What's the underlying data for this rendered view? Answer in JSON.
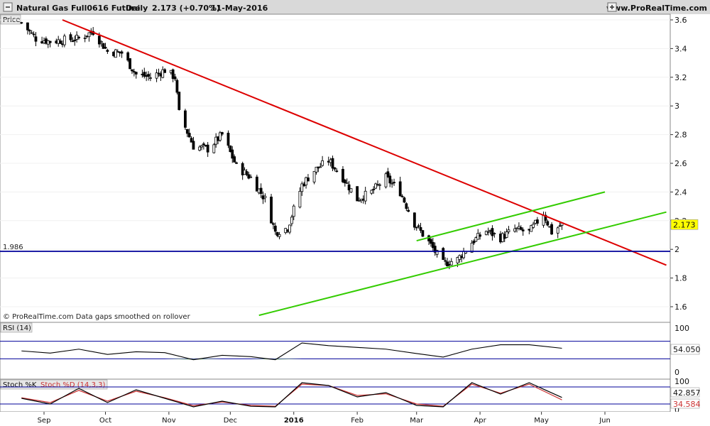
{
  "header": {
    "instrument": "Natural Gas Full0616 Future",
    "timeframe": "Daily",
    "last_change": "2.173 (+0.70%)",
    "date": "11-May-2016",
    "website": "www.ProRealTime.com"
  },
  "footer_note": "© ProRealTime.com  Data gaps smoothed on rollover",
  "chart_data": [
    {
      "type": "candlestick",
      "panel_label": "Price",
      "ylim": [
        1.45,
        3.65
      ],
      "y_ticks": [
        "1.6",
        "1.8",
        "2",
        "2.2",
        "2.4",
        "2.6",
        "2.8",
        "3",
        "3.2",
        "3.4",
        "3.6"
      ],
      "last_price": "2.173",
      "support_line_label": "1.986",
      "support_level": 1.986,
      "x_labels": [
        "Sep",
        "Oct",
        "Nov",
        "Dec",
        "2016",
        "Feb",
        "Mar",
        "Apr",
        "May",
        "Jun"
      ],
      "colors": {
        "up": "#ffffff",
        "down": "#000000",
        "resistance": "#dd0000",
        "channel": "#33cc00",
        "support": "#000099",
        "price_badge": "#ffff00"
      },
      "close_path": [
        [
          "2015-08-21",
          3.58
        ],
        [
          "2015-08-28",
          3.47
        ],
        [
          "2015-09-04",
          3.45
        ],
        [
          "2015-09-11",
          3.46
        ],
        [
          "2015-09-18",
          3.47
        ],
        [
          "2015-09-25",
          3.52
        ],
        [
          "2015-10-02",
          3.38
        ],
        [
          "2015-10-09",
          3.37
        ],
        [
          "2015-10-16",
          3.22
        ],
        [
          "2015-10-23",
          3.2
        ],
        [
          "2015-10-30",
          3.25
        ],
        [
          "2015-11-04",
          3.2
        ],
        [
          "2015-11-06",
          2.95
        ],
        [
          "2015-11-13",
          2.72
        ],
        [
          "2015-11-20",
          2.7
        ],
        [
          "2015-11-27",
          2.8
        ],
        [
          "2015-12-04",
          2.58
        ],
        [
          "2015-12-11",
          2.5
        ],
        [
          "2015-12-18",
          2.35
        ],
        [
          "2015-12-23",
          2.12
        ],
        [
          "2015-12-29",
          2.15
        ],
        [
          "2016-01-05",
          2.45
        ],
        [
          "2016-01-11",
          2.55
        ],
        [
          "2016-01-18",
          2.62
        ],
        [
          "2016-01-25",
          2.5
        ],
        [
          "2016-02-01",
          2.35
        ],
        [
          "2016-02-08",
          2.4
        ],
        [
          "2016-02-15",
          2.5
        ],
        [
          "2016-02-22",
          2.4
        ],
        [
          "2016-02-29",
          2.18
        ],
        [
          "2016-03-07",
          2.05
        ],
        [
          "2016-03-14",
          1.9
        ],
        [
          "2016-03-21",
          1.93
        ],
        [
          "2016-03-28",
          2.05
        ],
        [
          "2016-04-04",
          2.13
        ],
        [
          "2016-04-11",
          2.08
        ],
        [
          "2016-04-18",
          2.14
        ],
        [
          "2016-04-25",
          2.12
        ],
        [
          "2016-05-02",
          2.25
        ],
        [
          "2016-05-06",
          2.12
        ],
        [
          "2016-05-11",
          2.173
        ]
      ],
      "trendlines": [
        {
          "name": "resistance",
          "from": [
            "2015-09-10",
            3.6
          ],
          "to": [
            "2016-07-01",
            1.89
          ]
        },
        {
          "name": "channel-upper",
          "from": [
            "2016-03-01",
            2.06
          ],
          "to": [
            "2016-06-01",
            2.4
          ]
        },
        {
          "name": "channel-lower",
          "from": [
            "2015-12-15",
            1.54
          ],
          "to": [
            "2016-07-01",
            2.26
          ]
        }
      ]
    },
    {
      "type": "line",
      "panel_label": "RSI (14)",
      "ylim": [
        0,
        100
      ],
      "y_ticks": [
        "0",
        "100"
      ],
      "levels": [
        70,
        30
      ],
      "last_value": "54.050",
      "x": [
        "2015-08-21",
        "2015-09-04",
        "2015-09-18",
        "2015-10-02",
        "2015-10-16",
        "2015-10-30",
        "2015-11-13",
        "2015-11-27",
        "2015-12-11",
        "2015-12-23",
        "2016-01-05",
        "2016-01-18",
        "2016-02-01",
        "2016-02-15",
        "2016-03-01",
        "2016-03-14",
        "2016-03-28",
        "2016-04-11",
        "2016-04-25",
        "2016-05-11"
      ],
      "values": [
        48,
        43,
        52,
        40,
        46,
        44,
        28,
        38,
        35,
        28,
        66,
        60,
        56,
        52,
        42,
        34,
        52,
        62,
        62,
        54.05
      ]
    },
    {
      "type": "line",
      "panel_label": "Stoch %K",
      "secondary_label": "Stoch %D (14,3,3)",
      "ylim": [
        0,
        100
      ],
      "y_ticks": [
        "0",
        "100"
      ],
      "levels": [
        80,
        20
      ],
      "last_value_k": "42.857",
      "last_value_d": "34.584",
      "series": [
        {
          "name": "Stoch %K",
          "color": "#000000",
          "x": [
            "2015-08-21",
            "2015-09-04",
            "2015-09-18",
            "2015-10-02",
            "2015-10-16",
            "2015-10-30",
            "2015-11-13",
            "2015-11-27",
            "2015-12-11",
            "2015-12-23",
            "2016-01-05",
            "2016-01-18",
            "2016-02-01",
            "2016-02-15",
            "2016-03-01",
            "2016-03-14",
            "2016-03-28",
            "2016-04-11",
            "2016-04-25",
            "2016-05-11"
          ],
          "values": [
            40,
            20,
            75,
            25,
            70,
            40,
            10,
            30,
            12,
            10,
            95,
            85,
            45,
            60,
            15,
            10,
            95,
            55,
            95,
            42.857
          ]
        },
        {
          "name": "Stoch %D (14,3,3)",
          "color": "#cc3333",
          "x": [
            "2015-08-21",
            "2015-09-04",
            "2015-09-18",
            "2015-10-02",
            "2015-10-16",
            "2015-10-30",
            "2015-11-13",
            "2015-11-27",
            "2015-12-11",
            "2015-12-23",
            "2016-01-05",
            "2016-01-18",
            "2016-02-01",
            "2016-02-15",
            "2016-03-01",
            "2016-03-14",
            "2016-03-28",
            "2016-04-11",
            "2016-04-25",
            "2016-05-11"
          ],
          "values": [
            42,
            25,
            68,
            30,
            65,
            42,
            14,
            27,
            15,
            12,
            90,
            85,
            50,
            56,
            20,
            12,
            90,
            58,
            90,
            34.584
          ]
        }
      ]
    }
  ]
}
